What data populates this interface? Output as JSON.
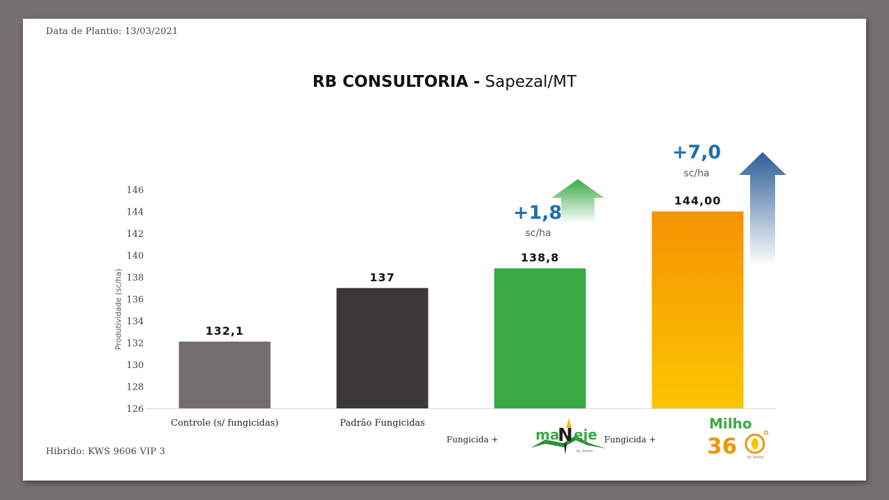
{
  "header": {
    "planting_date": "Data de Plantio: 13/03/2021"
  },
  "footer": {
    "hybrid": "Hibrido:  KWS 9606 VIP 3"
  },
  "chart_data": {
    "type": "bar",
    "title": "RB CONSULTORIA",
    "title_separator": "-",
    "subtitle": "Sapezal/MT",
    "ylabel": "Produtividade (sc/ha)",
    "ylim": [
      126,
      146
    ],
    "yticks": [
      126,
      128,
      130,
      132,
      134,
      136,
      138,
      140,
      142,
      144,
      146
    ],
    "grid": false,
    "categories": [
      "Controle (s/ fungicidas)",
      "Padrão Fungicidas",
      "Fungicida  +",
      "Fungicida  +"
    ],
    "values": [
      132.1,
      137,
      138.8,
      144.0
    ],
    "data_labels": [
      "132,1",
      "137",
      "138,8",
      "144,00"
    ],
    "colors": [
      "#736e6d",
      "#3b3938",
      "#3aaa44",
      "#f7a204"
    ],
    "gain_annotations": [
      {
        "category_index": 2,
        "value": "+1,8",
        "unit": "sc/ha",
        "arrow_color": "#52b85c"
      },
      {
        "category_index": 3,
        "value": "+7,0",
        "unit": "sc/ha",
        "arrow_color": "#2d5e98"
      }
    ],
    "logos": [
      {
        "category_index": 2,
        "name": "maneje-logo",
        "text_left": "ma",
        "text_mid": "N",
        "text_right": "eje",
        "tagline": "by Stoller"
      },
      {
        "category_index": 3,
        "name": "milho360-logo",
        "text_top": "Milho",
        "text_bottom": "36",
        "tagline": "by Stoller"
      }
    ]
  }
}
